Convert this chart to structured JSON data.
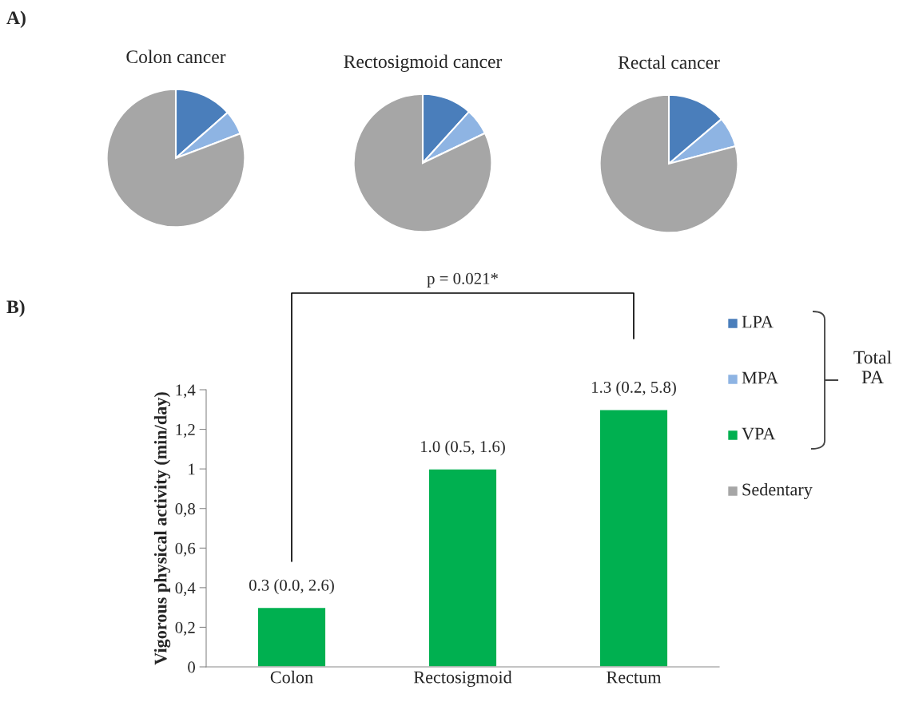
{
  "chart_data": [
    {
      "type": "pie",
      "title": "Colon cancer",
      "categories": [
        "LPA",
        "MPA",
        "VPA",
        "Sedentary"
      ],
      "values": [
        13.5,
        5.7,
        null,
        80.8
      ],
      "colors": [
        "#4a7ebb",
        "#8eb4e3",
        "#00b050",
        "#a6a6a6"
      ],
      "legend": "right",
      "annotations": [
        "A)",
        "Total PA"
      ]
    },
    {
      "type": "pie",
      "title": "Rectosigmoid cancer",
      "categories": [
        null,
        null,
        null,
        null
      ],
      "values": [
        11.7,
        6.2,
        null,
        82.1
      ],
      "colors": [
        "#4a7ebb",
        "#8eb4e3",
        "#00b050",
        "#a6a6a6"
      ]
    },
    {
      "type": "pie",
      "title": "Rectal cancer",
      "categories": [
        null,
        null,
        null,
        null
      ],
      "values": [
        13.8,
        7.1,
        null,
        79.1
      ],
      "colors": [
        "#4a7ebb",
        "#8eb4e3",
        "#00b050",
        "#a6a6a6"
      ]
    },
    {
      "type": "bar",
      "ylabel": "Vigorous physical activity (min/day)",
      "categories": [
        "Colon",
        "Rectosigmoid",
        "Rectum"
      ],
      "series": [
        {
          "color": "#00b050",
          "values": [
            0.3,
            1.0,
            1.3
          ],
          "value_labels": [
            "0.3 (0.0, 2.6)",
            "1.0 (0.5, 1.6)",
            "1.3 (0.2, 5.8)"
          ]
        }
      ],
      "ylim": [
        0,
        1.4
      ],
      "yticks": [
        0,
        {
          "value": 0.2,
          "label": "0,2"
        },
        {
          "value": 0.4,
          "label": "0,4"
        },
        {
          "value": 0.6,
          "label": "0,6"
        },
        {
          "value": 0.8,
          "label": "0,8"
        },
        1,
        {
          "value": 1.2,
          "label": "1,2"
        },
        {
          "value": 1.4,
          "label": "1,4"
        }
      ],
      "grid": false,
      "annotations": [
        "B)",
        "p = 0.021*"
      ]
    }
  ]
}
